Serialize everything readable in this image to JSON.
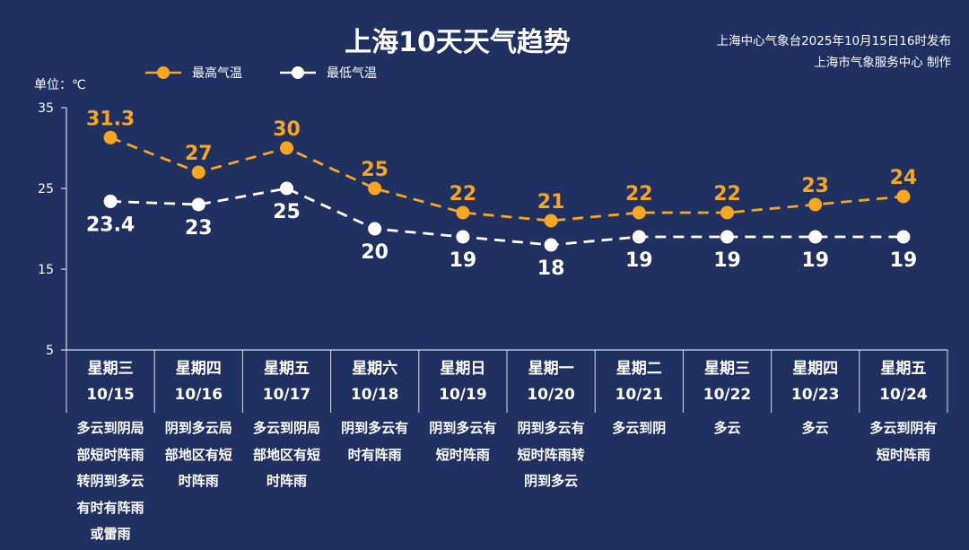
{
  "title": "上海10天天气趋势",
  "source_line1": "上海中心气象台2025年10月15日16时发布",
  "source_line2": "上海市气象服务中心 制作",
  "unit_label": "单位：℃",
  "colors": {
    "background": "#1f3061",
    "high": "#f5a623",
    "low": "#ffffff",
    "axis": "#d8dce8"
  },
  "chart_data": {
    "type": "line",
    "title": "上海10天天气趋势",
    "ylabel": "单位：℃",
    "ylim": [
      5,
      35
    ],
    "yticks": [
      5,
      15,
      25,
      35
    ],
    "legend_position": "top-left",
    "categories": [
      "10/15",
      "10/16",
      "10/17",
      "10/18",
      "10/19",
      "10/20",
      "10/21",
      "10/22",
      "10/23",
      "10/24"
    ],
    "weekdays": [
      "星期三",
      "星期四",
      "星期五",
      "星期六",
      "星期日",
      "星期一",
      "星期二",
      "星期三",
      "星期四",
      "星期五"
    ],
    "series": [
      {
        "name": "最高气温",
        "values": [
          31.3,
          27,
          30,
          25,
          22,
          21,
          22,
          22,
          23,
          24
        ],
        "labels": [
          "31.3",
          "27",
          "30",
          "25",
          "22",
          "21",
          "22",
          "22",
          "23",
          "24"
        ]
      },
      {
        "name": "最低气温",
        "values": [
          23.4,
          23,
          25,
          20,
          19,
          18,
          19,
          19,
          19,
          19
        ],
        "labels": [
          "23.4",
          "23",
          "25",
          "20",
          "19",
          "18",
          "19",
          "19",
          "19",
          "19"
        ]
      }
    ],
    "descriptions": [
      [
        "多云到阴局",
        "部短时阵雨",
        "转阴到多云",
        "有时有阵雨",
        "或雷雨"
      ],
      [
        "阴到多云局",
        "部地区有短",
        "时阵雨"
      ],
      [
        "多云到阴局",
        "部地区有短",
        "时阵雨"
      ],
      [
        "阴到多云有",
        "时有阵雨"
      ],
      [
        "阴到多云有",
        "短时阵雨"
      ],
      [
        "阴到多云有",
        "短时阵雨转",
        "阴到多云"
      ],
      [
        "多云到阴"
      ],
      [
        "多云"
      ],
      [
        "多云"
      ],
      [
        "多云到阴有",
        "短时阵雨"
      ]
    ]
  }
}
